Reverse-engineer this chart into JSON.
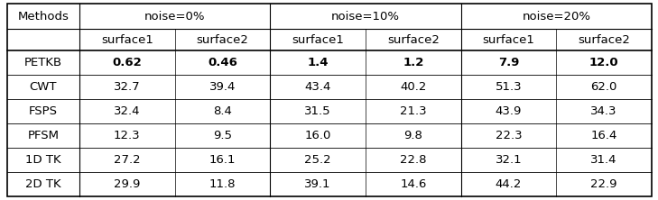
{
  "col_headers_row1": [
    "Methods",
    "noise=0%",
    "",
    "noise=10%",
    "",
    "noise=20%",
    ""
  ],
  "col_headers_row2": [
    "",
    "surface1",
    "surface2",
    "surface1",
    "surface2",
    "surface1",
    "surface2"
  ],
  "rows": [
    {
      "method": "PETKB",
      "values": [
        "0.62",
        "0.46",
        "1.4",
        "1.2",
        "7.9",
        "12.0"
      ],
      "bold": true
    },
    {
      "method": "CWT",
      "values": [
        "32.7",
        "39.4",
        "43.4",
        "40.2",
        "51.3",
        "62.0"
      ],
      "bold": false
    },
    {
      "method": "FSPS",
      "values": [
        "32.4",
        "8.4",
        "31.5",
        "21.3",
        "43.9",
        "34.3"
      ],
      "bold": false
    },
    {
      "method": "PFSM",
      "values": [
        "12.3",
        "9.5",
        "16.0",
        "9.8",
        "22.3",
        "16.4"
      ],
      "bold": false
    },
    {
      "method": "1D TK",
      "values": [
        "27.2",
        "16.1",
        "25.2",
        "22.8",
        "32.1",
        "31.4"
      ],
      "bold": false
    },
    {
      "method": "2D TK",
      "values": [
        "29.9",
        "11.8",
        "39.1",
        "14.6",
        "44.2",
        "22.9"
      ],
      "bold": false
    }
  ],
  "noise_groups": [
    "noise=0%",
    "noise=10%",
    "noise=20%"
  ],
  "surface_labels": [
    "surface1",
    "surface2"
  ],
  "background_color": "#ffffff",
  "font_size": 9.5
}
